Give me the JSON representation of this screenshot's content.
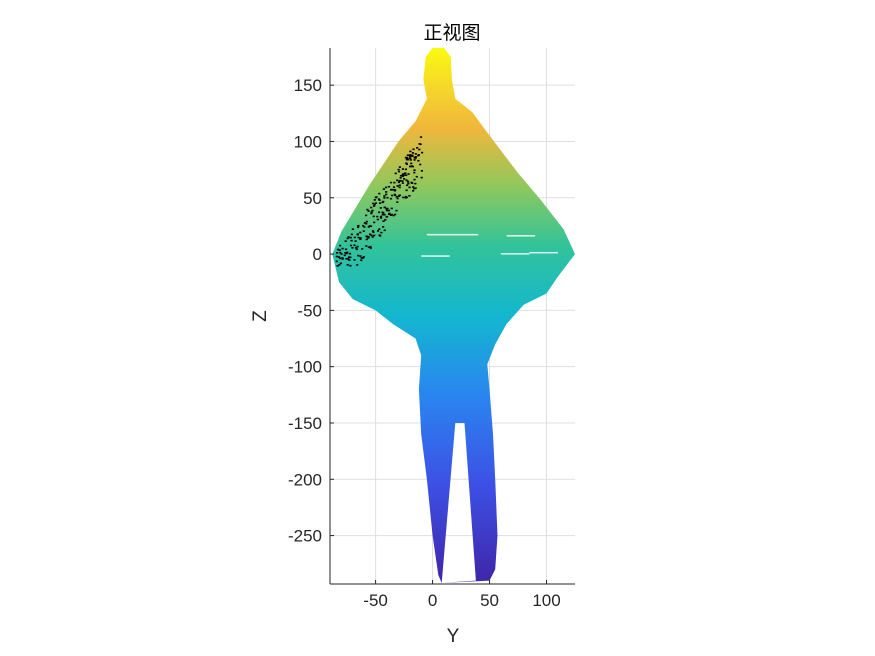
{
  "chart_data": {
    "type": "scatter",
    "title": "正视图",
    "xlabel": "Y",
    "ylabel": "Z",
    "xlim": [
      -90,
      125
    ],
    "ylim": [
      -293,
      183
    ],
    "xticks": [
      -50,
      0,
      50,
      100
    ],
    "yticks": [
      -250,
      -200,
      -150,
      -100,
      -50,
      0,
      50,
      100,
      150
    ],
    "xtick_labels": [
      "-50",
      "0",
      "50",
      "100"
    ],
    "ytick_labels": [
      "-250",
      "-200",
      "-150",
      "-100",
      "-50",
      "0",
      "50",
      "100",
      "150"
    ],
    "grid": true,
    "colormap": "parula",
    "color_by": "Z",
    "marker_color_low": "#3e26a8",
    "marker_color_high": "#f9fb0e",
    "occluded_color": "#000000",
    "outline": {
      "right_side": [
        [
          0,
          183
        ],
        [
          10,
          183
        ],
        [
          16,
          175
        ],
        [
          17,
          155
        ],
        [
          20,
          138
        ],
        [
          35,
          126
        ],
        [
          45,
          112
        ],
        [
          60,
          92
        ],
        [
          75,
          72
        ],
        [
          95,
          48
        ],
        [
          115,
          22
        ],
        [
          125,
          0
        ],
        [
          110,
          -20
        ],
        [
          100,
          -35
        ],
        [
          80,
          -45
        ],
        [
          65,
          -62
        ],
        [
          55,
          -80
        ],
        [
          48,
          -98
        ],
        [
          50,
          -120
        ],
        [
          53,
          -160
        ],
        [
          55,
          -200
        ],
        [
          57,
          -250
        ],
        [
          55,
          -280
        ],
        [
          50,
          -290
        ]
      ],
      "left_side": [
        [
          0,
          183
        ],
        [
          -6,
          175
        ],
        [
          -8,
          155
        ],
        [
          -5,
          138
        ],
        [
          -15,
          118
        ],
        [
          -30,
          100
        ],
        [
          -55,
          62
        ],
        [
          -80,
          20
        ],
        [
          -88,
          0
        ],
        [
          -82,
          -25
        ],
        [
          -70,
          -40
        ],
        [
          -50,
          -50
        ],
        [
          -35,
          -62
        ],
        [
          -15,
          -75
        ],
        [
          -10,
          -90
        ],
        [
          -12,
          -120
        ],
        [
          -10,
          -160
        ],
        [
          -5,
          -200
        ],
        [
          0,
          -250
        ],
        [
          5,
          -285
        ],
        [
          8,
          -292
        ]
      ]
    },
    "point_density": "dense"
  }
}
